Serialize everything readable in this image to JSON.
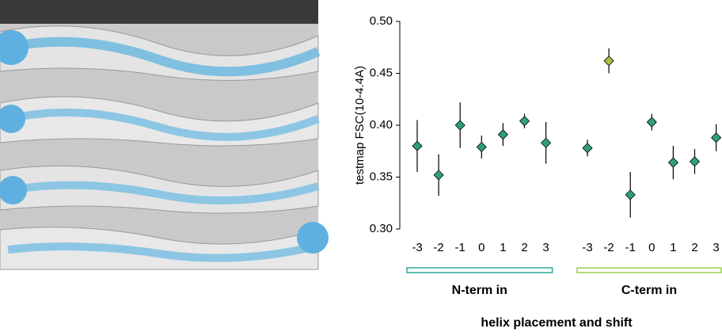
{
  "chart_data": {
    "type": "scatter",
    "y_label": "testmap FSC(10-4.4A)",
    "x_label": "helix placement and shift",
    "ylim": [
      0.3,
      0.5
    ],
    "yticks": [
      {
        "value": 0.3,
        "label": "0.30"
      },
      0.35,
      {
        "value": 0.4,
        "label": "0.40"
      },
      0.45,
      {
        "value": 0.5,
        "label": "0.50"
      }
    ],
    "groups": [
      {
        "name": "N-term in",
        "color": "#2aa89a",
        "categories": [
          "-3",
          "-2",
          "-1",
          "0",
          "1",
          "2",
          "3"
        ],
        "values": [
          0.38,
          0.352,
          0.4,
          0.379,
          0.391,
          0.404,
          0.383
        ],
        "errors": [
          0.025,
          0.02,
          0.022,
          0.011,
          0.011,
          0.007,
          0.02
        ],
        "point_colors": [
          "#2e9e7e",
          "#2e9e7e",
          "#2e9e7e",
          "#2e9e7e",
          "#2e9e7e",
          "#2e9e7e",
          "#2e9e7e"
        ]
      },
      {
        "name": "C-term in",
        "color": "#9ccc50",
        "categories": [
          "-3",
          "-2",
          "-1",
          "0",
          "1",
          "2",
          "3"
        ],
        "values": [
          0.378,
          0.462,
          0.333,
          0.403,
          0.364,
          0.365,
          0.388
        ],
        "errors": [
          0.008,
          0.012,
          0.022,
          0.008,
          0.016,
          0.012,
          0.013
        ],
        "point_colors": [
          "#2e9e7e",
          "#a8c040",
          "#2e9e7e",
          "#2e9e7e",
          "#2e9e7e",
          "#2e9e7e",
          "#2e9e7e"
        ]
      }
    ]
  }
}
